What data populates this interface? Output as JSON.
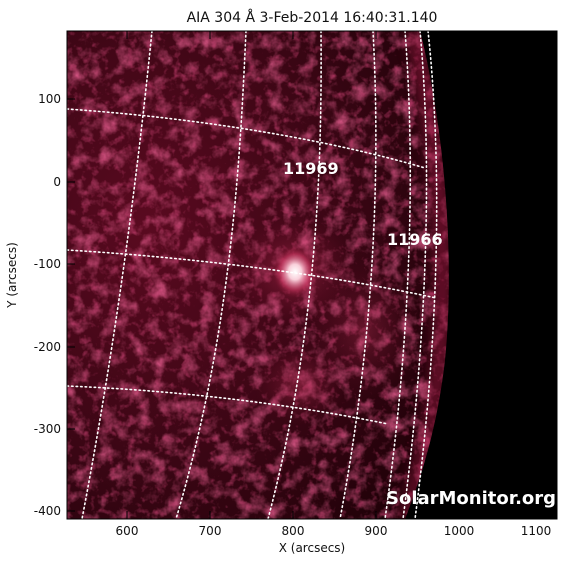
{
  "title": "AIA 304 Å  3-Feb-2014 16:40:31.140",
  "x_axis_label": "X (arcsecs)",
  "y_axis_label": "Y (arcsecs)",
  "x_ticks": [
    "600",
    "700",
    "800",
    "900",
    "1000",
    "1100"
  ],
  "y_ticks": [
    "100",
    "0",
    "-100",
    "-200",
    "-300",
    "-400"
  ],
  "regions": [
    {
      "label": "11969"
    },
    {
      "label": "11966"
    }
  ],
  "credit": "SolarMonitor.org",
  "colors": {
    "sun_dark": "#240009",
    "sun_mid": "#7a0f2b",
    "sun_bright": "#d43a66",
    "flare_core": "#ffd9e3",
    "space": "#000000",
    "grid": "#ffffff"
  }
}
